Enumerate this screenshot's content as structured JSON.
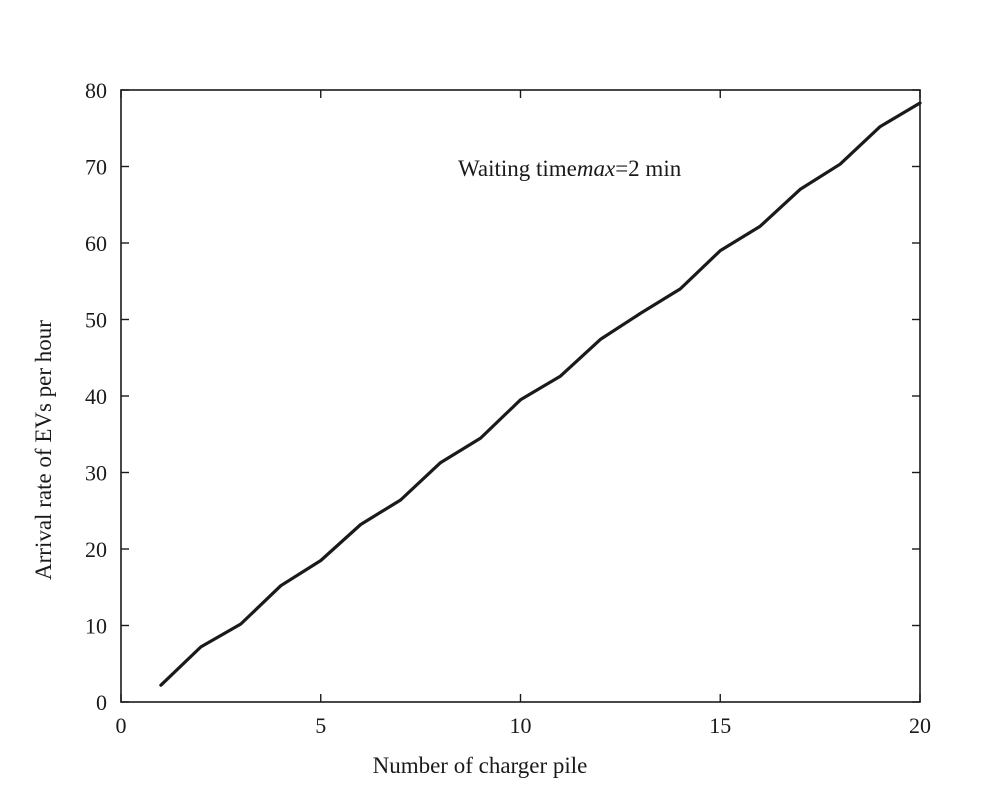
{
  "chart_data": {
    "type": "line",
    "title": "",
    "xlabel": "Number of charger pile",
    "ylabel": "Arrival rate of  EVs per hour",
    "xlim": [
      0,
      20
    ],
    "ylim": [
      0,
      80
    ],
    "xticks": [
      0,
      5,
      10,
      15,
      20
    ],
    "yticks": [
      0,
      10,
      20,
      30,
      40,
      50,
      60,
      70,
      80
    ],
    "grid": false,
    "annotation": {
      "prefix": "Waiting time",
      "italic": "max",
      "suffix": "=2 min"
    },
    "series": [
      {
        "color": "#1a1a1a",
        "x": [
          1,
          2,
          3,
          4,
          5,
          6,
          7,
          8,
          9,
          10,
          11,
          12,
          13,
          14,
          15,
          16,
          17,
          18,
          19,
          20
        ],
        "y": [
          2.2,
          7.2,
          10.2,
          15.2,
          18.5,
          23.2,
          26.4,
          31.3,
          34.5,
          39.5,
          42.6,
          47.4,
          50.8,
          54.0,
          59.0,
          62.2,
          67.0,
          70.3,
          75.2,
          78.3
        ]
      }
    ]
  }
}
